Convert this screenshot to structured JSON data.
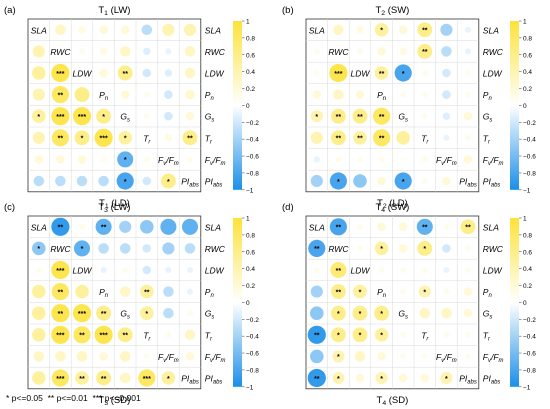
{
  "variables": [
    "SLA",
    "RWC",
    "LDW",
    "Pn",
    "Gs",
    "Tr",
    "Fv/Fm",
    "PIabs"
  ],
  "colorbar": {
    "ticks": [
      "1",
      "0.8",
      "0.6",
      "0.4",
      "0.2",
      "0",
      "−0.2",
      "−0.4",
      "−0.6",
      "−0.8",
      "−1"
    ],
    "min": -1,
    "max": 1,
    "colors": {
      "negative": "#1a8fe8",
      "mid": "#ffffff",
      "positive": "#fde23a"
    }
  },
  "significance_note": "* p<=0.05  ** p<=0.01  *** p<=0.001",
  "chart_data": [
    {
      "type": "heatmap",
      "panel_label": "(a)",
      "title": "T1 (LW)",
      "bottom_title": "T1 (LD)",
      "upper_triangle_group": "LW",
      "lower_triangle_group": "LD",
      "values": [
        [
          null,
          0.3,
          0.15,
          0.2,
          0.2,
          -0.3,
          0.4,
          0.4
        ],
        [
          0.4,
          null,
          0.1,
          0.15,
          0.3,
          -0.15,
          -0.1,
          0.3
        ],
        [
          0.5,
          0.9,
          null,
          0.2,
          0.6,
          -0.2,
          -0.15,
          0.3
        ],
        [
          0.4,
          0.8,
          0.6,
          null,
          0.2,
          0.1,
          -0.2,
          0.25
        ],
        [
          0.5,
          0.9,
          0.9,
          0.6,
          null,
          0.1,
          -0.2,
          0.2
        ],
        [
          0.4,
          0.8,
          0.6,
          0.9,
          0.5,
          null,
          0.15,
          0.6
        ],
        [
          0.2,
          0.2,
          0.2,
          0.1,
          -0.7,
          0.1,
          null,
          0.1
        ],
        [
          -0.3,
          -0.3,
          -0.3,
          -0.3,
          -0.8,
          -0.2,
          0.6,
          null
        ]
      ],
      "stars": [
        [
          "",
          "",
          "",
          "",
          "",
          "",
          "",
          ""
        ],
        [
          "",
          "",
          "",
          "",
          "",
          "",
          "",
          ""
        ],
        [
          "",
          "***",
          "",
          "",
          "**",
          "",
          "",
          ""
        ],
        [
          "",
          "**",
          "",
          "",
          "",
          "",
          "",
          ""
        ],
        [
          "*",
          "***",
          "***",
          "*",
          "",
          "",
          "",
          ""
        ],
        [
          "",
          "**",
          "*",
          "***",
          "*",
          "",
          "",
          "**"
        ],
        [
          "",
          "",
          "",
          "",
          "*",
          "",
          "",
          ""
        ],
        [
          "",
          "",
          "",
          "",
          "*",
          "",
          "*",
          ""
        ]
      ]
    },
    {
      "type": "heatmap",
      "panel_label": "(b)",
      "title": "T2 (SW)",
      "bottom_title": "T2 (LD)",
      "upper_triangle_group": "SW",
      "lower_triangle_group": "LD",
      "values": [
        [
          null,
          0.3,
          0.15,
          0.5,
          0.2,
          0.6,
          -0.4,
          -0.1
        ],
        [
          0.1,
          null,
          0.1,
          0.2,
          0.15,
          0.6,
          -0.3,
          -0.1
        ],
        [
          0.1,
          0.9,
          null,
          0.5,
          -0.8,
          0.1,
          -0.2,
          0.1
        ],
        [
          0.2,
          0.3,
          0.2,
          null,
          0.1,
          0.1,
          -0.2,
          0.1
        ],
        [
          0.4,
          0.6,
          0.6,
          0.8,
          null,
          0.1,
          -0.15,
          0.2
        ],
        [
          0.4,
          0.6,
          0.5,
          0.8,
          0.5,
          null,
          -0.1,
          0.1
        ],
        [
          -0.1,
          0.1,
          0.1,
          0.1,
          0.05,
          0.1,
          null,
          0.2
        ],
        [
          -0.4,
          -0.8,
          -0.5,
          0.2,
          -0.8,
          0.1,
          0.2,
          null
        ]
      ],
      "stars": [
        [
          "",
          "",
          "",
          "*",
          "",
          "**",
          "",
          ""
        ],
        [
          "",
          "",
          "",
          "",
          "",
          "**",
          "",
          ""
        ],
        [
          "",
          "***",
          "",
          "**",
          "*",
          "",
          "",
          ""
        ],
        [
          "",
          "",
          "",
          "",
          "",
          "",
          "",
          ""
        ],
        [
          "*",
          "**",
          "**",
          "**",
          "",
          "",
          "",
          ""
        ],
        [
          "",
          "**",
          "**",
          "**",
          "",
          "",
          "",
          ""
        ],
        [
          "",
          "",
          "",
          "",
          "",
          "",
          "",
          ""
        ],
        [
          "",
          "*",
          "",
          "",
          "*",
          "",
          "",
          ""
        ]
      ]
    },
    {
      "type": "heatmap",
      "panel_label": "(c)",
      "title": "T3 (LW)",
      "bottom_title": "T3 (SD)",
      "upper_triangle_group": "LW",
      "lower_triangle_group": "SD",
      "values": [
        [
          null,
          -0.9,
          0.1,
          -0.7,
          -0.4,
          -0.5,
          -0.7,
          -0.7
        ],
        [
          -0.5,
          null,
          -0.7,
          -0.3,
          -0.3,
          -0.2,
          -0.4,
          -0.3
        ],
        [
          0.1,
          0.9,
          null,
          -0.1,
          0.1,
          -0.2,
          -0.1,
          -0.1
        ],
        [
          0.5,
          0.8,
          0.5,
          null,
          0.3,
          0.5,
          -0.3,
          -0.1
        ],
        [
          0.5,
          0.9,
          0.9,
          0.6,
          null,
          0.5,
          -0.3,
          0.1
        ],
        [
          0.5,
          0.9,
          0.8,
          0.9,
          0.6,
          null,
          0.1,
          0.3
        ],
        [
          0.3,
          0.3,
          0.3,
          0.2,
          0.3,
          0.1,
          null,
          0.2
        ],
        [
          0.5,
          0.8,
          0.5,
          0.6,
          0.3,
          0.8,
          0.5,
          null
        ]
      ],
      "stars": [
        [
          "",
          "**",
          "",
          "**",
          "",
          "",
          "",
          ""
        ],
        [
          "*",
          "",
          "*",
          "",
          "",
          "",
          "",
          ""
        ],
        [
          "",
          "***",
          "",
          "",
          "",
          "",
          "",
          ""
        ],
        [
          "",
          "**",
          "",
          "",
          "",
          "**",
          "",
          ""
        ],
        [
          "",
          "**",
          "***",
          "**",
          "",
          "*",
          "",
          ""
        ],
        [
          "",
          "***",
          "**",
          "***",
          "**",
          "",
          "",
          ""
        ],
        [
          "",
          "",
          "",
          "",
          "",
          "",
          "",
          ""
        ],
        [
          "",
          "***",
          "**",
          "**",
          "",
          "***",
          "*",
          ""
        ]
      ]
    },
    {
      "type": "heatmap",
      "panel_label": "(d)",
      "title": "T4 (SW)",
      "bottom_title": "T4 (SD)",
      "upper_triangle_group": "SW",
      "lower_triangle_group": "SD",
      "values": [
        [
          null,
          -0.8,
          0.1,
          0.2,
          0.2,
          -0.7,
          0.1,
          0.6
        ],
        [
          -0.8,
          null,
          0.1,
          0.5,
          0.2,
          0.6,
          -0.2,
          0.1
        ],
        [
          0.1,
          0.7,
          null,
          0.1,
          0.1,
          0.1,
          -0.1,
          0.1
        ],
        [
          -0.4,
          0.6,
          0.5,
          null,
          0.1,
          0.4,
          0.1,
          0.2
        ],
        [
          -0.5,
          0.6,
          0.6,
          0.6,
          null,
          0.3,
          0.3,
          0.2
        ],
        [
          -0.9,
          0.6,
          0.6,
          0.5,
          0.1,
          null,
          0.1,
          0.1
        ],
        [
          -0.5,
          0.4,
          0.3,
          0.2,
          0.1,
          0.1,
          null,
          0.1
        ],
        [
          -0.9,
          0.4,
          0.2,
          0.4,
          0.2,
          0.2,
          0.4,
          null
        ]
      ],
      "stars": [
        [
          "",
          "**",
          "",
          "",
          "",
          "**",
          "",
          "**"
        ],
        [
          "**",
          "",
          "",
          "*",
          "",
          "*",
          "",
          ""
        ],
        [
          "",
          "**",
          "",
          "",
          "",
          "",
          "",
          ""
        ],
        [
          "",
          "**",
          "*",
          "",
          "",
          "*",
          "",
          ""
        ],
        [
          "",
          "*",
          "*",
          "*",
          "",
          "",
          "",
          ""
        ],
        [
          "**",
          "*",
          "*",
          "*",
          "",
          "",
          "",
          ""
        ],
        [
          "",
          "*",
          "",
          "",
          "",
          "",
          "",
          ""
        ],
        [
          "**",
          "*",
          "",
          "*",
          "",
          "",
          "*",
          ""
        ]
      ]
    }
  ]
}
